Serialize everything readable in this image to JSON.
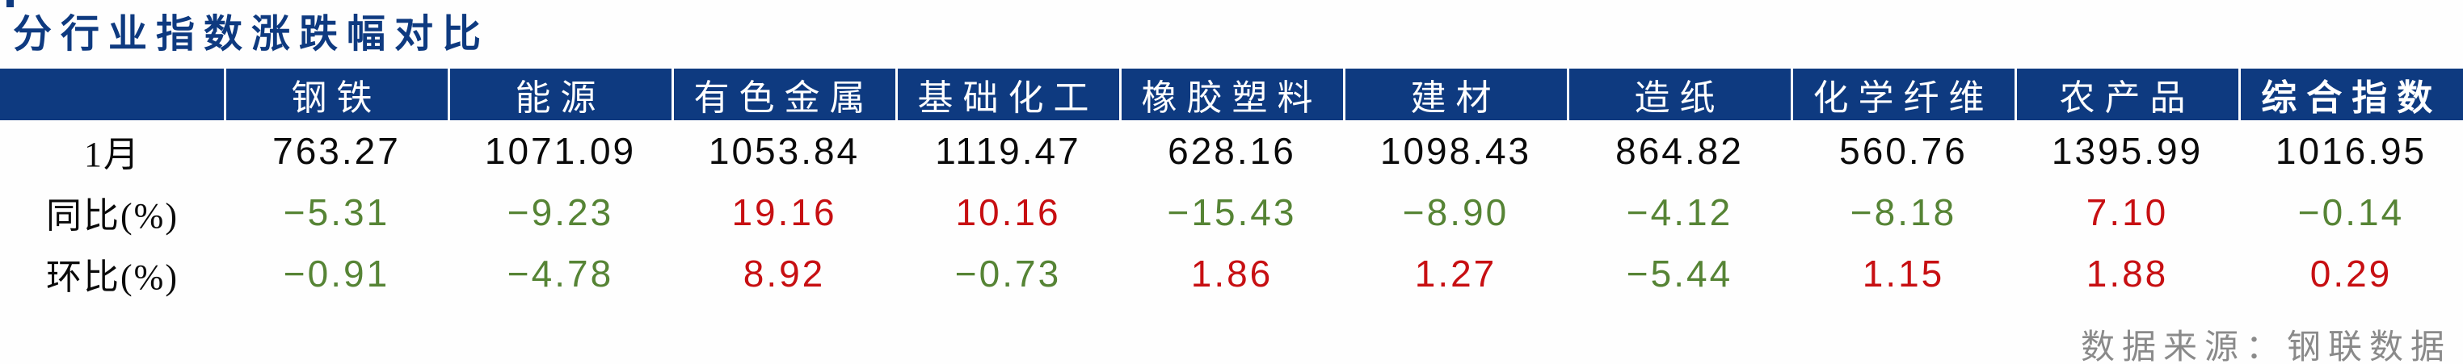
{
  "title": "分行业指数涨跌幅对比",
  "source": "数据来源：钢联数据",
  "colors": {
    "navy": "#0E3A80",
    "header_text": "#FFFFFF",
    "positive": "#C70F12",
    "negative": "#568435",
    "body_text": "#0A0A0A",
    "source_text": "#8A8A8A"
  },
  "table": {
    "columns": [
      "钢铁",
      "能源",
      "有色金属",
      "基础化工",
      "橡胶塑料",
      "建材",
      "造纸",
      "化学纤维",
      "农产品",
      "综合指数"
    ],
    "rows": [
      {
        "label": "1月",
        "values": [
          "763.27",
          "1071.09",
          "1053.84",
          "1119.47",
          "628.16",
          "1098.43",
          "864.82",
          "560.76",
          "1395.99",
          "1016.95"
        ]
      },
      {
        "label": "同比(%)",
        "values": [
          "−5.31",
          "−9.23",
          "19.16",
          "10.16",
          "−15.43",
          "−8.90",
          "−4.12",
          "−8.18",
          "7.10",
          "−0.14"
        ]
      },
      {
        "label": "环比(%)",
        "values": [
          "−0.91",
          "−4.78",
          "8.92",
          "−0.73",
          "1.86",
          "1.27",
          "−5.44",
          "1.15",
          "1.88",
          "0.29"
        ]
      }
    ]
  },
  "chart_data": {
    "type": "table",
    "title": "分行业指数涨跌幅对比",
    "categories": [
      "钢铁",
      "能源",
      "有色金属",
      "基础化工",
      "橡胶塑料",
      "建材",
      "造纸",
      "化学纤维",
      "农产品",
      "综合指数"
    ],
    "series": [
      {
        "name": "1月",
        "values": [
          763.27,
          1071.09,
          1053.84,
          1119.47,
          628.16,
          1098.43,
          864.82,
          560.76,
          1395.99,
          1016.95
        ]
      },
      {
        "name": "同比(%)",
        "values": [
          -5.31,
          -9.23,
          19.16,
          10.16,
          -15.43,
          -8.9,
          -4.12,
          -8.18,
          7.1,
          -0.14
        ]
      },
      {
        "name": "环比(%)",
        "values": [
          -0.91,
          -4.78,
          8.92,
          -0.73,
          1.86,
          1.27,
          -5.44,
          1.15,
          1.88,
          0.29
        ]
      }
    ],
    "source": "数据来源：钢联数据",
    "value_color_rule": "negative values green (#568435), positive values red (#C70F12)",
    "layout": "header row navy with white text, white vertical separators, last column header bold"
  }
}
